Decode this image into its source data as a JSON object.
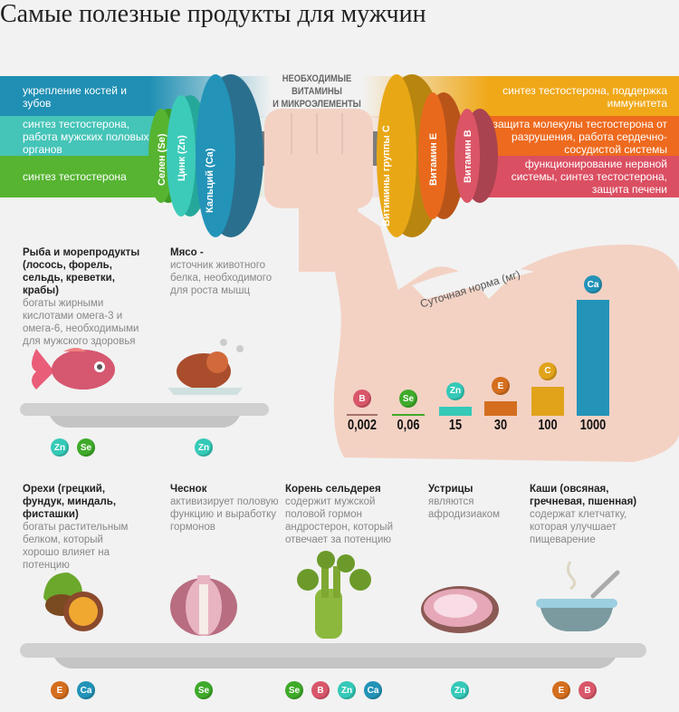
{
  "title": "Самые полезные продукты для мужчин",
  "center_heading": [
    "НЕОБХОДИМЫЕ ВИТАМИНЫ",
    "И МИКРОЭЛЕМЕНТЫ"
  ],
  "left_bands": [
    {
      "text": "укрепление костей и зубов",
      "color": "#1f8fb3"
    },
    {
      "text": "синтез тестостерона, работа мужских половых органов",
      "color": "#45c4b8"
    },
    {
      "text": "синтез тестостерона",
      "color": "#56b431"
    }
  ],
  "right_bands": [
    {
      "text": "синтез тестостерона, поддержка иммунитета",
      "color": "#f0a818"
    },
    {
      "text": "защита молекулы тестостерона от разрушения, работа сердечно-сосудистой системы",
      "color": "#ee6a1e"
    },
    {
      "text": "функционирование нервной системы, синтез тестостерона, защита печени",
      "color": "#db4f62"
    }
  ],
  "plates": {
    "se": "Селен (Se)",
    "zn": "Цинк (Zn)",
    "ca": "Кальций (Ca)",
    "c": "Витимины группы С",
    "e": "Витамин Е",
    "b": "Витамин В"
  },
  "badge_colors": {
    "B": "#d9576a",
    "Se": "#3faa2a",
    "Zn": "#35c9b8",
    "E": "#d46e1e",
    "C": "#e0a31a",
    "Ca": "#2393b8"
  },
  "chart_data": {
    "type": "bar",
    "title": "Суточная норма (мг)",
    "categories": [
      "B",
      "Se",
      "Zn",
      "E",
      "C",
      "Ca"
    ],
    "labels": [
      "0,002",
      "0,06",
      "15",
      "30",
      "100",
      "1000"
    ],
    "values": [
      0.002,
      0.06,
      15,
      30,
      100,
      1000
    ]
  },
  "foods_top": [
    {
      "title": "Рыба и морепродукты (лосось, форель, сельдь, креветки, крабы)",
      "desc": "богаты жирными кислотами омега-3 и омега-6, необходимыми для мужского здоровья",
      "badges": [
        "Zn",
        "Se"
      ]
    },
    {
      "title": "Мясо -",
      "desc": "источник животного белка, необходимого для роста мышц",
      "badges": [
        "Zn"
      ]
    }
  ],
  "foods_bottom": [
    {
      "title": "Орехи (грецкий, фундук, миндаль, фисташки)",
      "desc": "богаты растительным белком, который хорошо влияет на потенцию",
      "badges": [
        "E",
        "Ca"
      ]
    },
    {
      "title": "Чеснок",
      "desc": "активизирует половую функцию и выработку гормонов",
      "badges": [
        "Se"
      ]
    },
    {
      "title": "Корень сельдерея",
      "desc": "содержит мужской половой гормон андростерон, который отвечает за потенцию",
      "badges": [
        "Se",
        "B",
        "Zn",
        "Ca"
      ]
    },
    {
      "title": "Устрицы",
      "desc": "являются афродизиаком",
      "badges": [
        "Zn"
      ]
    },
    {
      "title": "Каши (овсяная, гречневая, пшенная)",
      "desc": "содержат клетчатку, которая улучшает пищеварение",
      "badges": [
        "E",
        "B"
      ]
    }
  ]
}
